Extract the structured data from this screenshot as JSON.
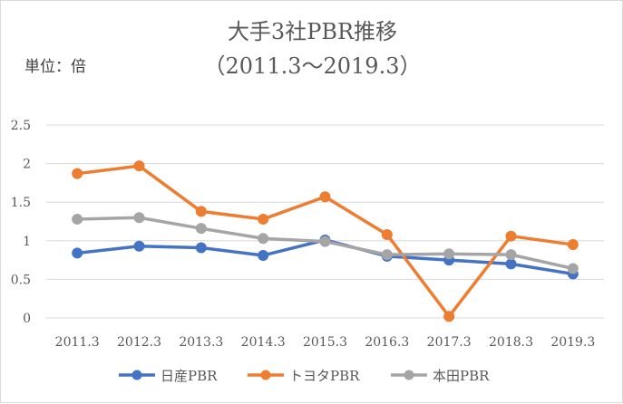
{
  "chart_data": {
    "type": "line",
    "title_line1": "大手3社PBR推移",
    "title_line2": "（2011.3～2019.3）",
    "unit_label": "単位：倍",
    "categories": [
      "2011.3",
      "2012.3",
      "2013.3",
      "2014.3",
      "2015.3",
      "2016.3",
      "2017.3",
      "2018.3",
      "2019.3"
    ],
    "y_ticks": [
      "0",
      "0.5",
      "1",
      "1.5",
      "2",
      "2.5"
    ],
    "ylim": [
      0,
      2.5
    ],
    "grid": "horizontal",
    "legend_position": "bottom",
    "series": [
      {
        "name": "日産PBR",
        "color": "#4472c4",
        "values": [
          0.84,
          0.93,
          0.91,
          0.81,
          1.01,
          0.8,
          0.75,
          0.7,
          0.57
        ]
      },
      {
        "name": "トヨタPBR",
        "color": "#ed7d31",
        "values": [
          1.87,
          1.97,
          1.38,
          1.28,
          1.57,
          1.08,
          0.02,
          1.06,
          0.95
        ]
      },
      {
        "name": "本田PBR",
        "color": "#a5a5a5",
        "values": [
          1.28,
          1.3,
          1.16,
          1.03,
          0.99,
          0.82,
          0.83,
          0.82,
          0.64
        ]
      }
    ]
  }
}
